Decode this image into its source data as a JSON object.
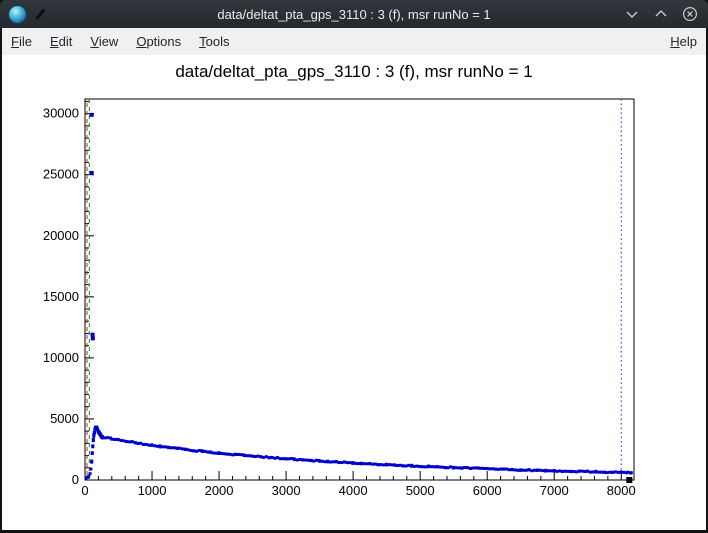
{
  "window": {
    "title": "data/deltat_pta_gps_3110 : 3 (f), msr runNo = 1"
  },
  "icons": {
    "app": "root-canvas-icon",
    "modified": "pen-icon",
    "minimize": "chevron-down",
    "maximize": "chevron-up",
    "close": "circle-x"
  },
  "menubar": {
    "items": [
      {
        "label": "File"
      },
      {
        "label": "Edit"
      },
      {
        "label": "View"
      },
      {
        "label": "Options"
      },
      {
        "label": "Tools"
      }
    ],
    "right_items": [
      {
        "label": "Help"
      }
    ]
  },
  "chart_data": {
    "type": "scatter",
    "title": "data/deltat_pta_gps_3110 : 3 (f), msr runNo = 1",
    "xlabel": "",
    "ylabel": "",
    "xlim": [
      0,
      8190
    ],
    "ylim": [
      0,
      31200
    ],
    "x_ticks": [
      0,
      1000,
      2000,
      3000,
      4000,
      5000,
      6000,
      7000,
      8000
    ],
    "x_minor_step": 200,
    "y_ticks": [
      0,
      5000,
      10000,
      15000,
      20000,
      25000,
      30000
    ],
    "y_minor_step": 1000,
    "grid": false,
    "legend": "none",
    "marker": {
      "shape": "square",
      "size": 3,
      "color": "#0000cc"
    },
    "outlier_points": [
      [
        100,
        29900
      ],
      [
        100,
        25150
      ],
      [
        113,
        11900
      ],
      [
        117,
        11600
      ]
    ],
    "pre_points": [
      [
        15,
        160
      ],
      [
        35,
        210
      ],
      [
        55,
        300
      ],
      [
        75,
        520
      ],
      [
        88,
        900
      ]
    ],
    "peak_points": [
      [
        100,
        1500
      ],
      [
        108,
        2200
      ],
      [
        116,
        2800
      ],
      [
        124,
        3300
      ],
      [
        132,
        3650
      ],
      [
        140,
        3900
      ],
      [
        148,
        4100
      ],
      [
        156,
        4250
      ],
      [
        164,
        4330
      ],
      [
        172,
        4280
      ],
      [
        180,
        4200
      ],
      [
        188,
        4100
      ],
      [
        196,
        4000
      ],
      [
        204,
        3920
      ],
      [
        212,
        3850
      ],
      [
        220,
        3780
      ],
      [
        228,
        3720
      ],
      [
        236,
        3660
      ],
      [
        244,
        3610
      ],
      [
        252,
        3560
      ],
      [
        260,
        3520
      ]
    ],
    "trend_points": [
      [
        260,
        3520
      ],
      [
        400,
        3380
      ],
      [
        500,
        3290
      ],
      [
        625,
        3180
      ],
      [
        750,
        3060
      ],
      [
        875,
        2950
      ],
      [
        1000,
        2840
      ],
      [
        1125,
        2750
      ],
      [
        1250,
        2660
      ],
      [
        1375,
        2580
      ],
      [
        1500,
        2500
      ],
      [
        1625,
        2420
      ],
      [
        1750,
        2350
      ],
      [
        1875,
        2280
      ],
      [
        2000,
        2210
      ],
      [
        2125,
        2140
      ],
      [
        2250,
        2080
      ],
      [
        2375,
        2020
      ],
      [
        2500,
        1960
      ],
      [
        2625,
        1900
      ],
      [
        2750,
        1850
      ],
      [
        2875,
        1800
      ],
      [
        3000,
        1750
      ],
      [
        3125,
        1700
      ],
      [
        3250,
        1650
      ],
      [
        3375,
        1610
      ],
      [
        3500,
        1560
      ],
      [
        3625,
        1520
      ],
      [
        3750,
        1480
      ],
      [
        3875,
        1440
      ],
      [
        4000,
        1400
      ],
      [
        4125,
        1360
      ],
      [
        4250,
        1330
      ],
      [
        4375,
        1290
      ],
      [
        4500,
        1260
      ],
      [
        4625,
        1220
      ],
      [
        4750,
        1190
      ],
      [
        4875,
        1160
      ],
      [
        5000,
        1130
      ],
      [
        5125,
        1100
      ],
      [
        5250,
        1070
      ],
      [
        5375,
        1050
      ],
      [
        5500,
        1020
      ],
      [
        5625,
        990
      ],
      [
        5750,
        970
      ],
      [
        5875,
        940
      ],
      [
        6000,
        920
      ],
      [
        6125,
        900
      ],
      [
        6250,
        870
      ],
      [
        6375,
        850
      ],
      [
        6500,
        830
      ],
      [
        6625,
        810
      ],
      [
        6750,
        790
      ],
      [
        6875,
        770
      ],
      [
        7000,
        750
      ],
      [
        7125,
        730
      ],
      [
        7250,
        720
      ],
      [
        7375,
        700
      ],
      [
        7500,
        680
      ],
      [
        7625,
        670
      ],
      [
        7750,
        650
      ],
      [
        7875,
        640
      ],
      [
        8000,
        620
      ],
      [
        8100,
        610
      ],
      [
        8150,
        600
      ]
    ],
    "vlines": [
      {
        "name": "background-range-line",
        "x": 30,
        "color": "#cc2222",
        "dash": "4 4",
        "dashoffset": 4
      },
      {
        "name": "t0-line",
        "x": 65,
        "color": "#00a000",
        "dash": "4 4",
        "dashoffset": 0
      },
      {
        "name": "data-range-end-line",
        "x": 8000,
        "color": "#2222cc",
        "dash": "1.5 3",
        "dashoffset": 0
      }
    ],
    "end_marker": {
      "x": 8120,
      "y": 0,
      "color": "#000000",
      "size": 6
    }
  }
}
